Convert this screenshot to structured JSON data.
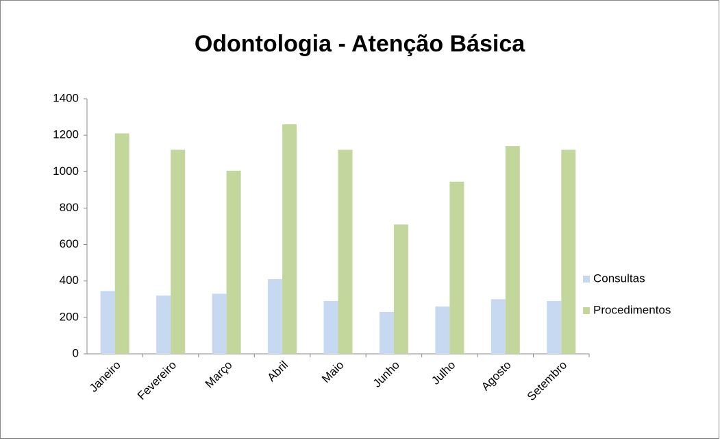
{
  "chart_data": {
    "type": "bar",
    "title": "Odontologia - Atenção Básica",
    "categories": [
      "Janeiro",
      "Fevereiro",
      "Março",
      "Abril",
      "Maio",
      "Junho",
      "Julho",
      "Agosto",
      "Setembro"
    ],
    "series": [
      {
        "name": "Consultas",
        "color": "#c6d9f1",
        "values": [
          345,
          320,
          330,
          410,
          290,
          230,
          260,
          300,
          290
        ]
      },
      {
        "name": "Procedimentos",
        "color": "#c3d69b",
        "values": [
          1210,
          1120,
          1005,
          1260,
          1120,
          710,
          945,
          1140,
          1120
        ]
      }
    ],
    "ylim": [
      0,
      1400
    ],
    "yticks": [
      0,
      200,
      400,
      600,
      800,
      1000,
      1200,
      1400
    ],
    "grid": false,
    "legend": "right"
  }
}
